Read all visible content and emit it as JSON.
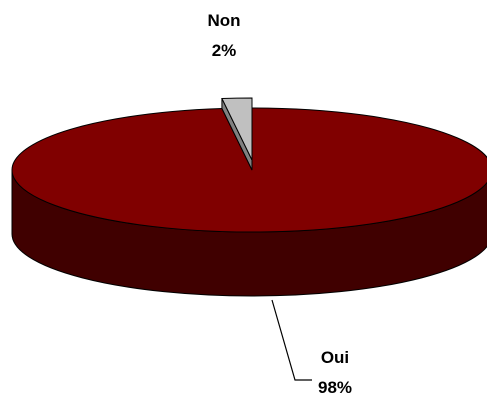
{
  "chart_data": {
    "type": "pie",
    "style": "3d",
    "slices": [
      {
        "label": "Oui",
        "value": 98,
        "percent_label": "98%",
        "color": "#800000",
        "side_color": "#400000",
        "exploded": false
      },
      {
        "label": "Non",
        "value": 2,
        "percent_label": "2%",
        "color": "#c0c0c0",
        "side_color": "#808080",
        "exploded": true
      }
    ],
    "legend": "none",
    "title": ""
  }
}
